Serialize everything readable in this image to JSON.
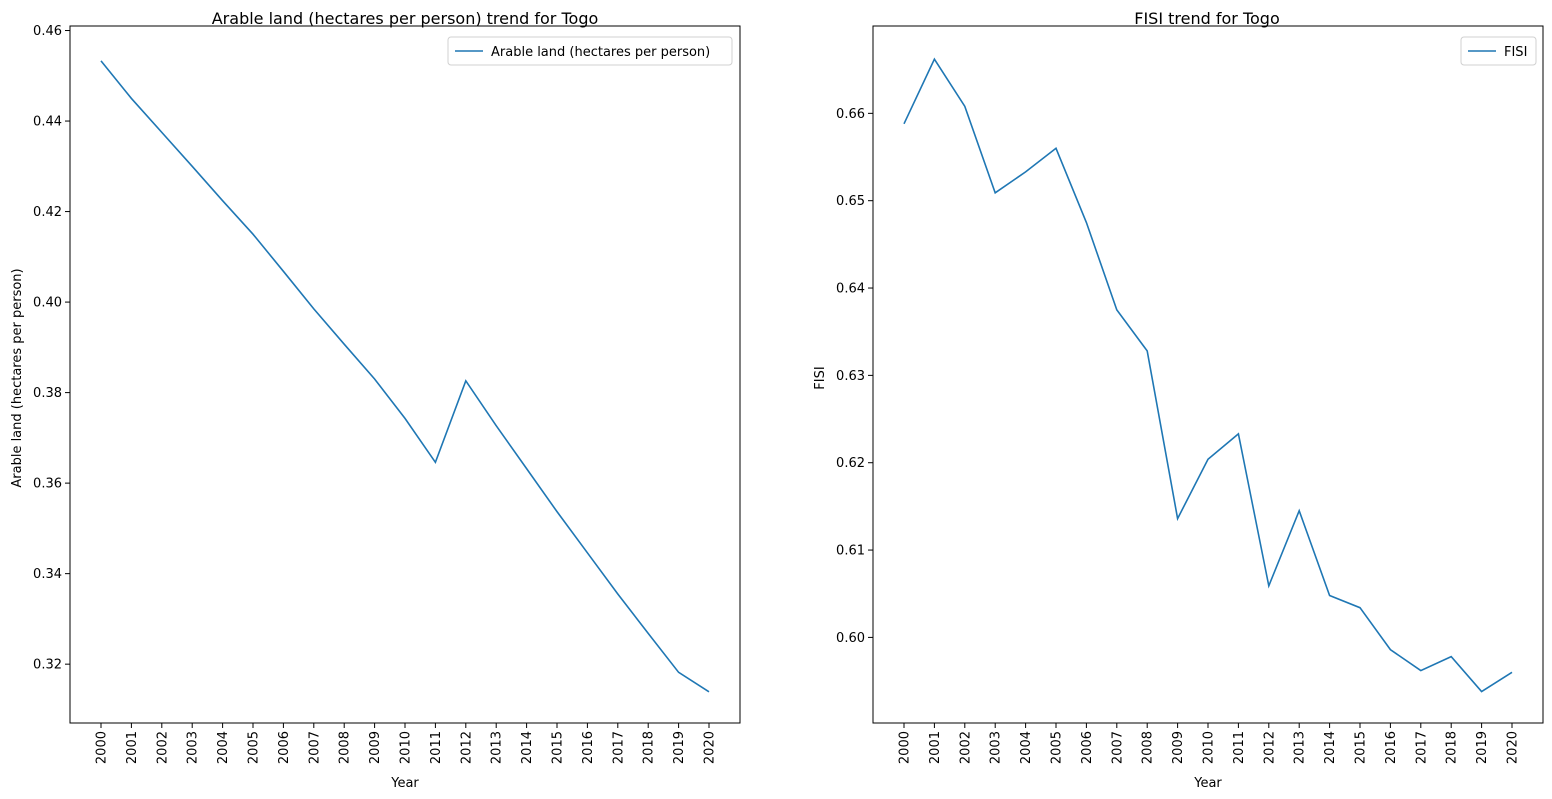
{
  "chart_data": [
    {
      "type": "line",
      "title": "Arable land (hectares per person) trend for Togo",
      "xlabel": "Year",
      "ylabel": "Arable land (hectares per person)",
      "categories": [
        "2000",
        "2001",
        "2002",
        "2003",
        "2004",
        "2005",
        "2006",
        "2007",
        "2008",
        "2009",
        "2010",
        "2011",
        "2012",
        "2013",
        "2014",
        "2015",
        "2016",
        "2017",
        "2018",
        "2019",
        "2020"
      ],
      "yticks": [
        "0.32",
        "0.34",
        "0.36",
        "0.38",
        "0.40",
        "0.42",
        "0.44",
        "0.46"
      ],
      "ylim": [
        0.307,
        0.461
      ],
      "legend_position": "top-right",
      "color": "#1f77b4",
      "series": [
        {
          "name": "Arable land (hectares per person)",
          "values": [
            0.4533,
            0.445,
            0.4375,
            0.43,
            0.4224,
            0.415,
            0.4068,
            0.3985,
            0.3907,
            0.383,
            0.3743,
            0.3646,
            0.3826,
            0.3727,
            0.3632,
            0.3537,
            0.3446,
            0.3355,
            0.3268,
            0.3182,
            0.3139
          ]
        }
      ]
    },
    {
      "type": "line",
      "title": "FISI trend for Togo",
      "xlabel": "Year",
      "ylabel": "FISI",
      "categories": [
        "2000",
        "2001",
        "2002",
        "2003",
        "2004",
        "2005",
        "2006",
        "2007",
        "2008",
        "2009",
        "2010",
        "2011",
        "2012",
        "2013",
        "2014",
        "2015",
        "2016",
        "2017",
        "2018",
        "2019",
        "2020"
      ],
      "yticks": [
        "0.60",
        "0.61",
        "0.62",
        "0.63",
        "0.64",
        "0.65",
        "0.66"
      ],
      "ylim": [
        0.5902,
        0.67
      ],
      "legend_position": "top-right",
      "color": "#1f77b4",
      "series": [
        {
          "name": "FISI",
          "values": [
            0.6588,
            0.6662,
            0.6608,
            0.6509,
            0.6533,
            0.656,
            0.6475,
            0.6375,
            0.6328,
            0.6136,
            0.6204,
            0.6233,
            0.6059,
            0.6145,
            0.6048,
            0.6034,
            0.5986,
            0.5962,
            0.5978,
            0.5938,
            0.596
          ]
        }
      ]
    }
  ]
}
